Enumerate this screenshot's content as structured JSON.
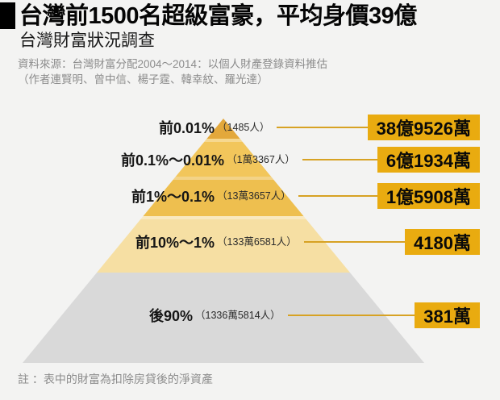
{
  "header": {
    "title": "台灣前1500名超級富豪，平均身價39億",
    "subtitle": "台灣財富狀況調查",
    "source_line1": "資料來源：台灣財富分配2004～2014：以個人財產登錄資料推估",
    "source_line2": "（作者連賢明、曾中信、楊子霆、韓幸紋、羅光達）"
  },
  "tiers": [
    {
      "percent": "前0.01%",
      "count": "（1485人）",
      "value": "38億9526萬"
    },
    {
      "percent": "前0.1%～0.01%",
      "count": "（1萬3367人）",
      "value": "6億1934萬"
    },
    {
      "percent": "前1%～0.1%",
      "count": "（13萬3657人）",
      "value": "1億5908萬"
    },
    {
      "percent": "前10%～1%",
      "count": "（133萬6581人）",
      "value": "4180萬"
    },
    {
      "percent": "後90%",
      "count": "（1336萬5814人）",
      "value": "381萬"
    }
  ],
  "note": "註 ：表中的財富為扣除房貸後的淨資產",
  "colors": {
    "background": "#F3F3F2",
    "value_box": "#E9AB10",
    "connector_line": "#D7A224",
    "layers": [
      "#E3A83B",
      "#F2C65B",
      "#EEBF4F",
      "#F6DFA3",
      "#D9D9D9"
    ]
  },
  "chart_data": {
    "type": "pyramid",
    "title": "台灣前1500名超級富豪，平均身價39億",
    "subtitle": "台灣財富狀況調查",
    "categories": [
      "前0.01%",
      "前0.1%～0.01%",
      "前1%～0.1%",
      "前10%～1%",
      "後90%"
    ],
    "population_counts": [
      1485,
      13367,
      133657,
      1336581,
      13365814
    ],
    "population_labels": [
      "1485人",
      "1萬3367人",
      "13萬3657人",
      "133萬6581人",
      "1336萬5814人"
    ],
    "avg_wealth_labels": [
      "38億9526萬",
      "6億1934萬",
      "1億5908萬",
      "4180萬",
      "381萬"
    ],
    "avg_wealth_twd": [
      3895260000,
      619340000,
      159080000,
      41800000,
      3810000
    ],
    "note": "表中的財富為扣除房貸後的淨資產",
    "source": "台灣財富分配2004～2014：以個人財產登錄資料推估（作者連賢明、曾中信、楊子霆、韓幸紋、羅光達）",
    "legend_position": "none",
    "grid": false
  }
}
